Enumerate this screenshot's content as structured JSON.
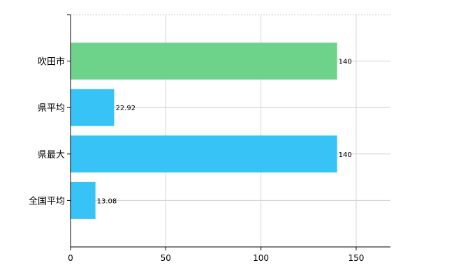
{
  "chart_data": {
    "type": "bar",
    "orientation": "horizontal",
    "categories": [
      "吹田市",
      "県平均",
      "県最大",
      "全国平均"
    ],
    "values": [
      140,
      22.92,
      140,
      13.08
    ],
    "data_labels": [
      "140",
      "22.92",
      "140",
      "13.08"
    ],
    "bar_colors": [
      "#6dd38b",
      "#38c3f6",
      "#38c3f6",
      "#38c3f6"
    ],
    "xlim": [
      0,
      168
    ],
    "x_ticks": [
      0,
      50,
      100,
      150
    ],
    "x_tick_labels": [
      "0",
      "50",
      "100",
      "150"
    ],
    "grid": true,
    "legend": "none",
    "title": "",
    "xlabel": "",
    "ylabel": ""
  }
}
